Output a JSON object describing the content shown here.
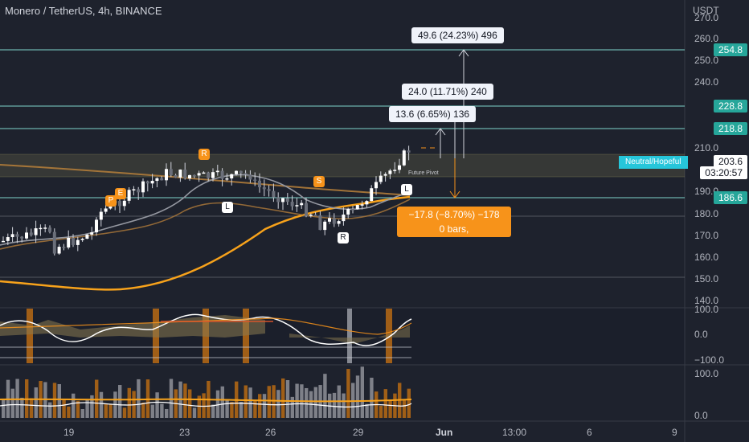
{
  "header": {
    "symbol_title": "Monero / TetherUS, 4h, BINANCE",
    "currency": "USDT"
  },
  "price_axis": {
    "ticks": [
      "270.0",
      "260.0",
      "250.0",
      "240.0",
      "210.0",
      "190.0",
      "180.0",
      "170.0",
      "160.0",
      "150.0",
      "140.0"
    ],
    "tags": {
      "t254": "254.8",
      "t228": "228.8",
      "t218": "218.8",
      "t186": "186.6",
      "current": "203.6",
      "countdown": "03:20:57"
    }
  },
  "indicator_axis_1": {
    "ticks": [
      "100.0",
      "0.0",
      "−100.0"
    ]
  },
  "indicator_axis_2": {
    "ticks": [
      "100.0",
      "0.0"
    ]
  },
  "time_axis": {
    "ticks": [
      "19",
      "23",
      "26",
      "29",
      "Jun",
      "13:00",
      "6",
      "9"
    ]
  },
  "measure_boxes": {
    "top": "49.6 (24.23%) 496",
    "mid": "24.0 (11.71%) 240",
    "low": "13.6 (6.65%) 136",
    "down_line1": "−17.8 (−8.70%) −178",
    "down_line2": "0 bars,"
  },
  "markers": {
    "r1": "R",
    "p": "P",
    "e": "E",
    "s": "S",
    "l1": "L",
    "l2": "L",
    "r2": "R"
  },
  "labels": {
    "neutral": "Neutral/Hopeful",
    "future_pivot": "Future Pivot"
  },
  "colors": {
    "teal": "#26a69a",
    "orange": "#f7931a",
    "background": "#1e222d",
    "grid": "#2a2e39"
  }
}
